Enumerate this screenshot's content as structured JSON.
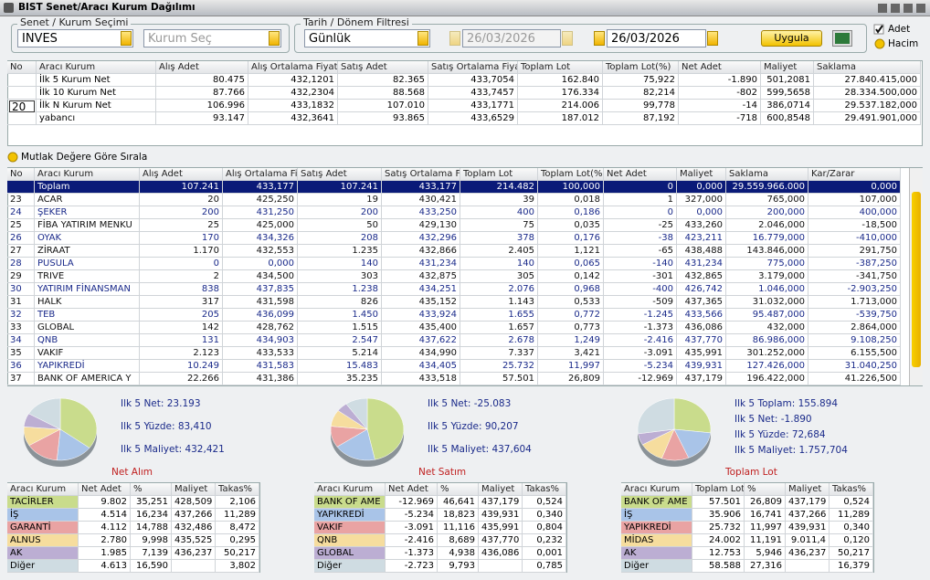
{
  "window": {
    "title": "BIST Senet/Aracı Kurum Dağılımı"
  },
  "filters": {
    "stock_group_label": "Senet / Kurum Seçimi",
    "stock_value": "INVES",
    "broker_placeholder": "Kurum Seç",
    "date_group_label": "Tarih / Dönem Filtresi",
    "period_value": "Günlük",
    "start_date": "26/03/2026",
    "end_date": "26/03/2026",
    "apply_button": "Uygula",
    "options": [
      "Adet",
      "Hacim"
    ]
  },
  "summary_table": {
    "headers": [
      "No",
      "Aracı Kurum",
      "Alış Adet",
      "Alış Ortalama Fiyat",
      "Satış Adet",
      "Satış Ortalama Fiyat",
      "Toplam Lot",
      "Toplam Lot(%)",
      "Net Adet",
      "Maliyet",
      "Saklama"
    ],
    "n_input": "20",
    "rows": [
      [
        null,
        "İlk 5 Kurum Net",
        "80.475",
        "432,1201",
        "82.365",
        "433,7054",
        "162.840",
        "75,922",
        "-1.890",
        "501,2081",
        "27.840.415,000"
      ],
      [
        null,
        "İlk 10 Kurum Net",
        "87.766",
        "432,2304",
        "88.568",
        "433,7457",
        "176.334",
        "82,214",
        "-802",
        "599,5658",
        "28.334.500,000"
      ],
      [
        null,
        "İlk N Kurum Net",
        "106.996",
        "433,1832",
        "107.010",
        "433,1771",
        "214.006",
        "99,778",
        "-14",
        "386,0714",
        "29.537.182,000"
      ],
      [
        null,
        "yabancı",
        "93.147",
        "432,3641",
        "93.865",
        "433,6529",
        "187.012",
        "87,192",
        "-718",
        "600,8548",
        "29.491.901,000"
      ]
    ]
  },
  "sort_option": "Mutlak Değere Göre Sırala",
  "main_table": {
    "headers": [
      "No",
      "Aracı Kurum",
      "Alış Adet",
      "Alış Ortalama Fiy",
      "Satış Adet",
      "Satış Ortalama Fi",
      "Toplam Lot",
      "Toplam Lot(%",
      "Net Adet",
      "Maliyet",
      "Saklama",
      "Kar/Zarar"
    ],
    "rows": [
      [
        null,
        "Toplam",
        "107.241",
        "433,177",
        "107.241",
        "433,177",
        "214.482",
        "100,000",
        "0",
        "0,000",
        "29.559.966.000",
        "0,000"
      ],
      [
        "23",
        "ACAR",
        "20",
        "425,250",
        "19",
        "430,421",
        "39",
        "0,018",
        "1",
        "327,000",
        "765,000",
        "107,000"
      ],
      [
        "24",
        "ŞEKER",
        "200",
        "431,250",
        "200",
        "433,250",
        "400",
        "0,186",
        "0",
        "0,000",
        "200,000",
        "400,000"
      ],
      [
        "25",
        "FİBA YATIRIM MENKU",
        "25",
        "425,000",
        "50",
        "429,130",
        "75",
        "0,035",
        "-25",
        "433,260",
        "2.046,000",
        "-18,500"
      ],
      [
        "26",
        "OYAK",
        "170",
        "434,326",
        "208",
        "432,296",
        "378",
        "0,176",
        "-38",
        "423,211",
        "16.779,000",
        "-410,000"
      ],
      [
        "27",
        "ZİRAAT",
        "1.170",
        "432,553",
        "1.235",
        "432,866",
        "2.405",
        "1,121",
        "-65",
        "438,488",
        "143.846,000",
        "291,750"
      ],
      [
        "28",
        "PUSULA",
        "0",
        "0,000",
        "140",
        "431,234",
        "140",
        "0,065",
        "-140",
        "431,234",
        "775,000",
        "-387,250"
      ],
      [
        "29",
        "TRIVE",
        "2",
        "434,500",
        "303",
        "432,875",
        "305",
        "0,142",
        "-301",
        "432,865",
        "3.179,000",
        "-341,750"
      ],
      [
        "30",
        "YATIRIM FİNANSMAN",
        "838",
        "437,835",
        "1.238",
        "434,251",
        "2.076",
        "0,968",
        "-400",
        "426,742",
        "1.046,000",
        "-2.903,250"
      ],
      [
        "31",
        "HALK",
        "317",
        "431,598",
        "826",
        "435,152",
        "1.143",
        "0,533",
        "-509",
        "437,365",
        "31.032,000",
        "1.713,000"
      ],
      [
        "32",
        "TEB",
        "205",
        "436,099",
        "1.450",
        "433,924",
        "1.655",
        "0,772",
        "-1.245",
        "433,566",
        "95.487,000",
        "-539,750"
      ],
      [
        "33",
        "GLOBAL",
        "142",
        "428,762",
        "1.515",
        "435,400",
        "1.657",
        "0,773",
        "-1.373",
        "436,086",
        "432,000",
        "2.864,000"
      ],
      [
        "34",
        "QNB",
        "131",
        "434,903",
        "2.547",
        "437,622",
        "2.678",
        "1,249",
        "-2.416",
        "437,770",
        "86.986,000",
        "9.108,250"
      ],
      [
        "35",
        "VAKIF",
        "2.123",
        "433,533",
        "5.214",
        "434,990",
        "7.337",
        "3,421",
        "-3.091",
        "435,991",
        "301.252,000",
        "6.155,500"
      ],
      [
        "36",
        "YAPIKREDİ",
        "10.249",
        "431,583",
        "15.483",
        "434,405",
        "25.732",
        "11,997",
        "-5.234",
        "439,931",
        "127.426,000",
        "31.040,250"
      ],
      [
        "37",
        "BANK OF AMERICA Y",
        "22.266",
        "431,386",
        "35.235",
        "433,518",
        "57.501",
        "26,809",
        "-12.969",
        "437,179",
        "196.422,000",
        "41.226,500"
      ]
    ]
  },
  "panels": [
    {
      "stats": [
        "Ilk 5 Net: 23.193",
        "Ilk 5 Yüzde: 83,410",
        "Ilk 5 Maliyet: 432,421"
      ],
      "caption": "Net Alım",
      "table": {
        "headers": [
          "Aracı Kurum",
          "Net Adet",
          "%",
          "Maliyet",
          "Takas%"
        ],
        "rows": [
          [
            "TACİRLER",
            "9.802",
            "35,251",
            "428,509",
            "2,106"
          ],
          [
            "İŞ",
            "4.514",
            "16,234",
            "437,266",
            "11,289"
          ],
          [
            "GARANTİ",
            "4.112",
            "14,788",
            "432,486",
            "8,472"
          ],
          [
            "ALNUS",
            "2.780",
            "9,998",
            "435,525",
            "0,295"
          ],
          [
            "AK",
            "1.985",
            "7,139",
            "436,237",
            "50,217"
          ],
          [
            "Diğer",
            "4.613",
            "16,590",
            null,
            "3,802"
          ]
        ]
      }
    },
    {
      "stats": [
        "Ilk 5 Net: -25.083",
        "Ilk 5 Yüzde: 90,207",
        "Ilk 5 Maliyet: 437,604"
      ],
      "caption": "Net Satım",
      "table": {
        "headers": [
          "Aracı Kurum",
          "Net Adet",
          "%",
          "Maliyet",
          "Takas%"
        ],
        "rows": [
          [
            "BANK OF AME",
            "-12.969",
            "46,641",
            "437,179",
            "0,524"
          ],
          [
            "YAPIKREDİ",
            "-5.234",
            "18,823",
            "439,931",
            "0,340"
          ],
          [
            "VAKIF",
            "-3.091",
            "11,116",
            "435,991",
            "0,804"
          ],
          [
            "QNB",
            "-2.416",
            "8,689",
            "437,770",
            "0,232"
          ],
          [
            "GLOBAL",
            "-1.373",
            "4,938",
            "436,086",
            "0,001"
          ],
          [
            "Diğer",
            "-2.723",
            "9,793",
            null,
            "0,785"
          ]
        ]
      }
    },
    {
      "stats": [
        "Ilk 5 Toplam: 155.894",
        "Ilk 5 Net: -1.890",
        "Ilk 5 Yüzde: 72,684",
        "Ilk 5 Maliyet: 1.757,704"
      ],
      "caption": "Toplam Lot",
      "table": {
        "headers": [
          "Aracı Kurum",
          "Toplam Lot",
          "%",
          "Maliyet",
          "Takas%"
        ],
        "rows": [
          [
            "BANK OF AME",
            "57.501",
            "26,809",
            "437,179",
            "0,524"
          ],
          [
            "İŞ",
            "35.906",
            "16,741",
            "437,266",
            "11,289"
          ],
          [
            "YAPIKREDİ",
            "25.732",
            "11,997",
            "439,931",
            "0,340"
          ],
          [
            "MİDAS",
            "24.002",
            "11,191",
            "9.011,4",
            "0,120"
          ],
          [
            "AK",
            "12.753",
            "5,946",
            "436,237",
            "50,217"
          ],
          [
            "Diğer",
            "58.588",
            "27,316",
            null,
            "16,379"
          ]
        ]
      }
    }
  ]
}
